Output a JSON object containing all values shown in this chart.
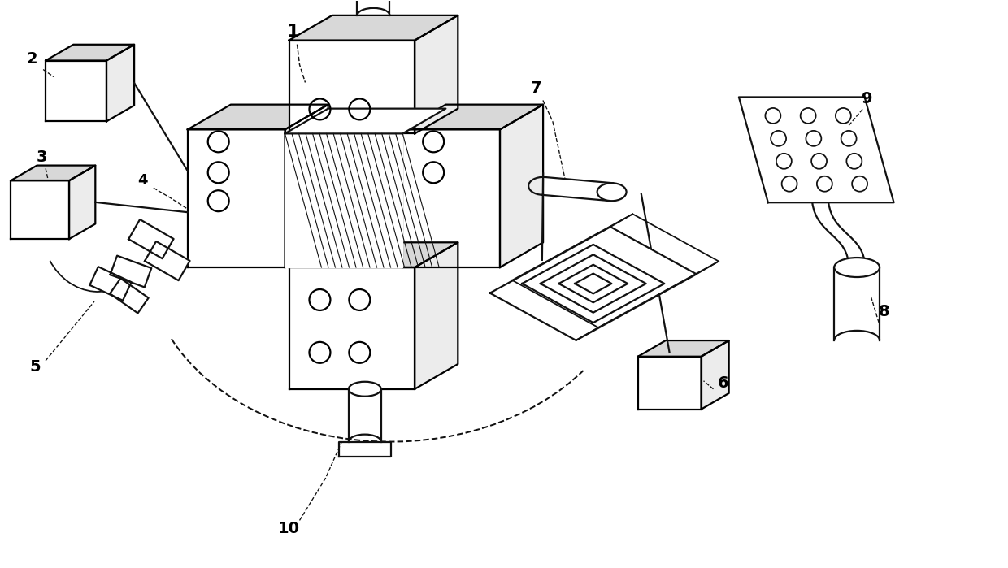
{
  "background": "#ffffff",
  "line_color": "#111111",
  "line_width": 1.6,
  "fig_width": 12.4,
  "fig_height": 6.99
}
